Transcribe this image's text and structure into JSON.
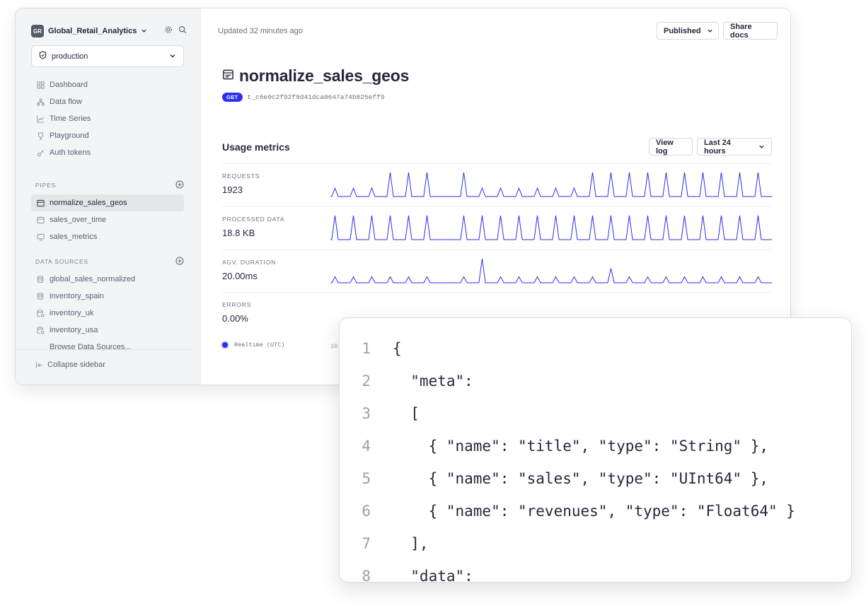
{
  "workspace": {
    "initials": "GR",
    "name": "Global_Retail_Analytics",
    "environment": "production"
  },
  "nav": [
    {
      "label": "Dashboard",
      "icon": "grid-icon"
    },
    {
      "label": "Data flow",
      "icon": "flow-icon"
    },
    {
      "label": "Time Series",
      "icon": "chart-line-icon"
    },
    {
      "label": "Playground",
      "icon": "trophy-icon"
    },
    {
      "label": "Auth tokens",
      "icon": "key-icon"
    }
  ],
  "pipes": {
    "heading": "PIPES",
    "items": [
      {
        "label": "normalize_sales_geos",
        "active": true
      },
      {
        "label": "sales_over_time",
        "active": false
      },
      {
        "label": "sales_metrics",
        "active": false
      }
    ]
  },
  "data_sources": {
    "heading": "DATA SOURCES",
    "items": [
      {
        "label": "global_sales_normalized",
        "icon": "database-icon"
      },
      {
        "label": "inventory_spain",
        "icon": "database-icon"
      },
      {
        "label": "inventory_uk",
        "icon": "database-link-icon"
      },
      {
        "label": "inventory_usa",
        "icon": "database-link-icon"
      }
    ],
    "browse_label": "Browse Data Sources..."
  },
  "collapse_label": "Collapse sidebar",
  "header": {
    "updated": "Updated 32 minutes ago",
    "status_label": "Published",
    "share_label": "Share docs"
  },
  "pipe": {
    "title": "normalize_sales_geos",
    "method": "GET",
    "token_id": "t_c6e0c2f92f9d41dca0647a74b825eff9"
  },
  "usage": {
    "title": "Usage metrics",
    "view_log_label": "View log",
    "range_label": "Last 24 hours",
    "legend_label": "Realtime (UTC)",
    "axis_tick": "10:",
    "metrics": [
      {
        "label": "REQUESTS",
        "value": "1923"
      },
      {
        "label": "PROCESSED DATA",
        "value": "18.8 KB"
      },
      {
        "label": "AGV. DURATION",
        "value": "20.00ms"
      },
      {
        "label": "ERRORS",
        "value": "0.00%"
      }
    ]
  },
  "sparklines": {
    "color": "#2f2ff0",
    "series": [
      {
        "name": "requests",
        "values": [
          0.35,
          0,
          0.35,
          0,
          0.35,
          0,
          1,
          0,
          1,
          0,
          1,
          0,
          0,
          0,
          1,
          0,
          0.35,
          0,
          0.35,
          0,
          0.35,
          0,
          0.35,
          0,
          0.35,
          0,
          0.35,
          0,
          1,
          0,
          1,
          0,
          1,
          0,
          1,
          0,
          1,
          0,
          1,
          0,
          1,
          0,
          1,
          0,
          1,
          0,
          1,
          0
        ]
      },
      {
        "name": "processed_data",
        "values": [
          1,
          0,
          1,
          0,
          1,
          0,
          1,
          0,
          1,
          0,
          1,
          0,
          0,
          0,
          1,
          0,
          1,
          0,
          1,
          0,
          1,
          0,
          1,
          0,
          1,
          0,
          1,
          0,
          1,
          0,
          1,
          0,
          1,
          0,
          1,
          0,
          1,
          0,
          1,
          0,
          1,
          0,
          1,
          0,
          1,
          0,
          1,
          0
        ]
      },
      {
        "name": "avg_duration",
        "values": [
          0.25,
          0,
          0.25,
          0,
          0.25,
          0,
          0.25,
          0,
          0.25,
          0,
          0.25,
          0,
          0,
          0,
          0.25,
          0,
          1,
          0,
          0.25,
          0,
          0.25,
          0,
          0.25,
          0,
          0.25,
          0,
          0.25,
          0,
          0.25,
          0,
          0.6,
          0,
          0.25,
          0,
          0.25,
          0,
          0.25,
          0,
          0.25,
          0,
          0.25,
          0,
          0.25,
          0,
          0.25,
          0,
          0.25,
          0
        ]
      }
    ]
  },
  "code": {
    "lines": [
      {
        "n": "1",
        "text": "{"
      },
      {
        "n": "2",
        "text": "  \"meta\":"
      },
      {
        "n": "3",
        "text": "  ["
      },
      {
        "n": "4",
        "text": "    { \"name\": \"title\", \"type\": \"String\" },"
      },
      {
        "n": "5",
        "text": "    { \"name\": \"sales\", \"type\": \"UInt64\" },"
      },
      {
        "n": "6",
        "text": "    { \"name\": \"revenues\", \"type\": \"Float64\" }"
      },
      {
        "n": "7",
        "text": "  ],"
      },
      {
        "n": "8",
        "text": "  \"data\":"
      }
    ]
  }
}
